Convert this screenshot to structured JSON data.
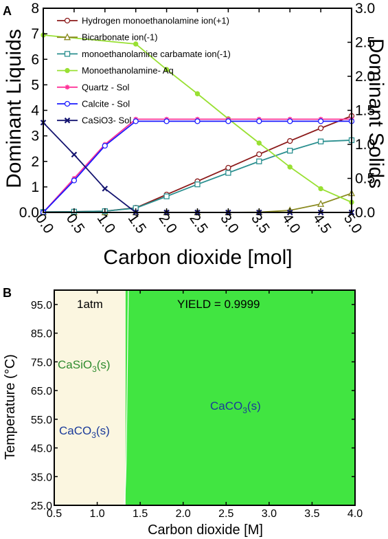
{
  "chart_data": [
    {
      "panel": "A",
      "type": "line",
      "xlabel": "Carbon dioxide [mol]",
      "ylabel_left": "Dominant Liquids",
      "ylabel_right": "Dominant Solids",
      "xlim": [
        0,
        5
      ],
      "ylim_left": [
        0,
        8
      ],
      "ylim_right": [
        0,
        3
      ],
      "x_ticks": [
        "0.0",
        "0.5",
        "1.0",
        "1.5",
        "2.0",
        "2.5",
        "3.0",
        "3.5",
        "4.0",
        "4.5",
        "5.0"
      ],
      "y_left_ticks": [
        "0.0",
        "1",
        "2",
        "3",
        "4",
        "5",
        "6",
        "7",
        "8"
      ],
      "y_right_ticks": [
        "0.0",
        "0.5",
        "1.0",
        "1.5",
        "2.0",
        "2.5",
        "3.0"
      ],
      "legend_position": "top-left",
      "series": [
        {
          "name": "Hydrogen monoethanolamine ion(+1)",
          "axis": "left",
          "color": "#8b1a1a",
          "marker": "circle",
          "x": [
            0,
            0.5,
            1,
            1.5,
            2,
            2.5,
            3,
            3.5,
            4,
            4.5,
            5
          ],
          "y": [
            0.02,
            0.03,
            0.05,
            0.18,
            0.7,
            1.22,
            1.75,
            2.28,
            2.8,
            3.3,
            3.78
          ]
        },
        {
          "name": "Bicarbonate ion(-1)",
          "axis": "left",
          "color": "#8a8a20",
          "marker": "triangle",
          "x": [
            0,
            0.5,
            1,
            1.5,
            2,
            2.5,
            3,
            3.5,
            4,
            4.5,
            5
          ],
          "y": [
            0,
            0,
            0,
            0,
            0,
            0,
            0,
            0.01,
            0.08,
            0.33,
            0.75
          ]
        },
        {
          "name": "monoethanolamine carbamate ion(-1)",
          "axis": "left",
          "color": "#2a8f8f",
          "marker": "square",
          "x": [
            0,
            0.5,
            1,
            1.5,
            2,
            2.5,
            3,
            3.5,
            4,
            4.5,
            5
          ],
          "y": [
            0.02,
            0.03,
            0.05,
            0.17,
            0.63,
            1.1,
            1.55,
            2.0,
            2.42,
            2.78,
            2.83
          ]
        },
        {
          "name": "Monoethanolamine- Aq",
          "axis": "left",
          "color": "#99e033",
          "marker": "dot",
          "x": [
            0,
            1.5,
            2,
            2.5,
            3,
            3.5,
            4,
            4.5,
            5
          ],
          "y": [
            6.95,
            6.6,
            5.6,
            4.65,
            3.67,
            2.72,
            1.78,
            0.93,
            0.4
          ]
        },
        {
          "name": "Quartz - Sol",
          "axis": "right",
          "color": "#ff3399",
          "marker": "star",
          "x": [
            0,
            0.5,
            1,
            1.5,
            2,
            2.5,
            3,
            3.5,
            4,
            4.5,
            5
          ],
          "y": [
            0,
            0.5,
            1.0,
            1.37,
            1.37,
            1.37,
            1.37,
            1.37,
            1.37,
            1.37,
            1.37
          ]
        },
        {
          "name": "Calcite - Sol",
          "axis": "right",
          "color": "#1a1aff",
          "marker": "circle",
          "x": [
            0,
            0.5,
            1,
            1.5,
            2,
            2.5,
            3,
            3.5,
            4,
            4.5,
            5
          ],
          "y": [
            0,
            0.47,
            0.98,
            1.34,
            1.34,
            1.34,
            1.34,
            1.34,
            1.34,
            1.34,
            1.34
          ]
        },
        {
          "name": "CaSiO3- Sol",
          "axis": "right",
          "color": "#141470",
          "marker": "x",
          "x": [
            0,
            0.5,
            1,
            1.5,
            2,
            2.5,
            3,
            3.5,
            4,
            4.5,
            5
          ],
          "y": [
            1.32,
            0.85,
            0.35,
            0,
            0,
            0,
            0,
            0,
            0,
            0,
            0
          ]
        }
      ]
    },
    {
      "panel": "B",
      "type": "heatmap",
      "xlabel": "Carbon dioxide [M]",
      "ylabel": "Temperature  (°C)",
      "xlim": [
        0.5,
        4.0
      ],
      "ylim": [
        25.0,
        100.0
      ],
      "x_ticks": [
        "0.5",
        "1.0",
        "1.5",
        "2.0",
        "2.5",
        "3.0",
        "3.5",
        "4.0"
      ],
      "y_ticks": [
        "25.0",
        "35.0",
        "45.0",
        "55.0",
        "65.0",
        "75.0",
        "85.0",
        "95.0"
      ],
      "boundary_x": 1.33,
      "regions": [
        {
          "label": "CaSiO3(s) / CaCO3(s)",
          "x_range": [
            0.5,
            1.33
          ],
          "color": "#fbf6e0"
        },
        {
          "label": "CaCO3(s)",
          "x_range": [
            1.33,
            4.0
          ],
          "color": "#41e541"
        }
      ],
      "annotations": {
        "pressure": "1atm",
        "yield": "YIELD =  0.9999",
        "left_top_base": "CaSiO",
        "left_top_sub": "3",
        "left_top_suffix": "(s)",
        "left_bottom_base": "CaCO",
        "left_bottom_sub": "3",
        "left_bottom_suffix": "(s)",
        "right_base": "CaCO",
        "right_sub": "3",
        "right_suffix": "(s)"
      },
      "colors": {
        "left_text_top": "#2e8b2e",
        "left_text_bottom": "#1a3a9a",
        "right_text": "#1a3a9a"
      }
    }
  ],
  "panel_labels": {
    "a": "A",
    "b": "B"
  }
}
